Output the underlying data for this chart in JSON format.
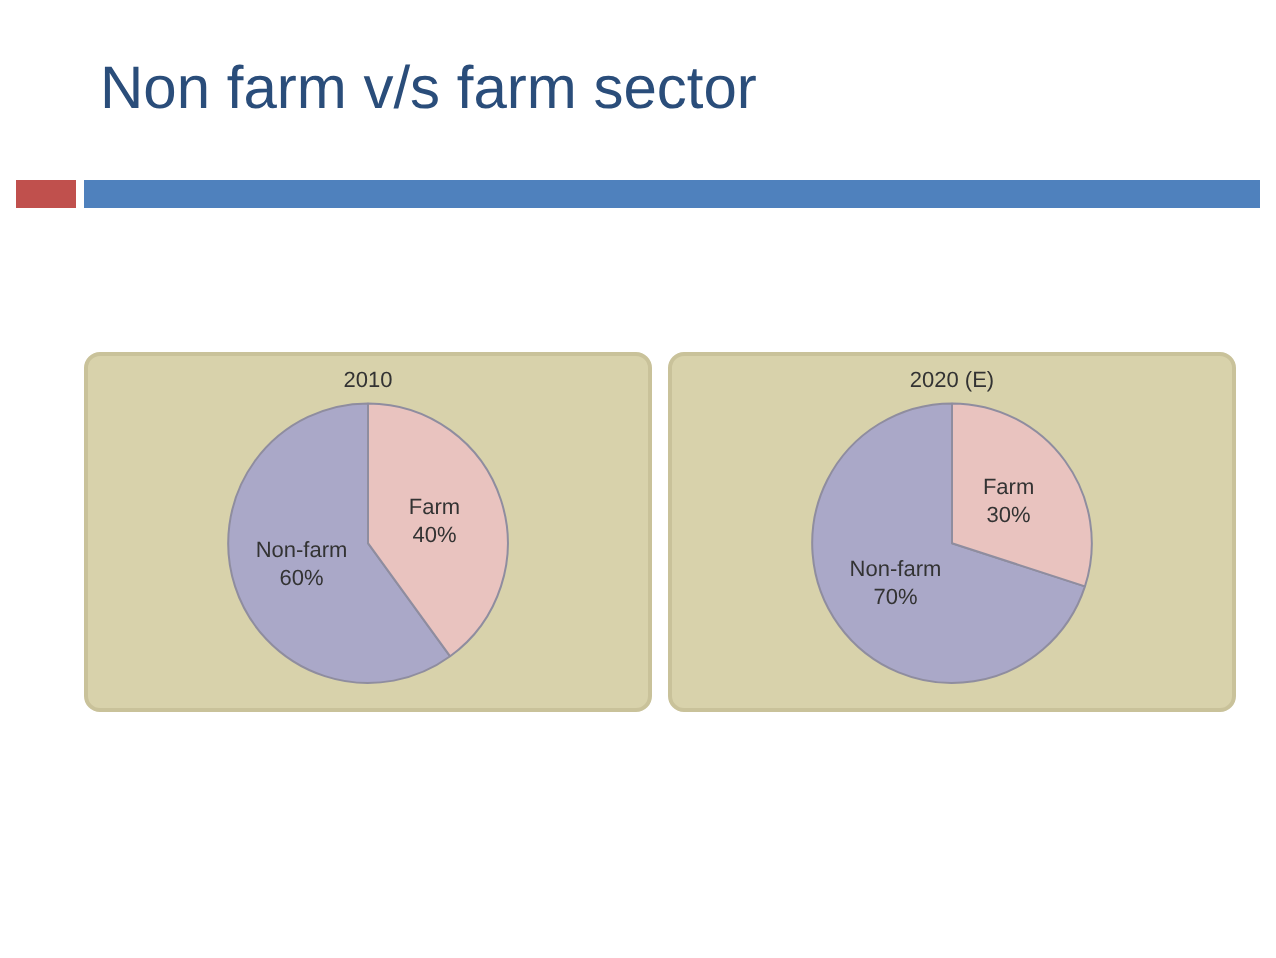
{
  "chart_data": [
    {
      "type": "pie",
      "title": "Non farm v/s farm sector",
      "subtitle": "2010",
      "categories": [
        "Non-farm",
        "Farm"
      ],
      "values": [
        60,
        40
      ],
      "colors": [
        "#aaa8c8",
        "#e9c3bf"
      ],
      "value_labels": [
        "60%",
        "40%"
      ],
      "legend": false
    },
    {
      "type": "pie",
      "subtitle": "2020 (E)",
      "categories": [
        "Non-farm",
        "Farm"
      ],
      "values": [
        70,
        30
      ],
      "colors": [
        "#aaa8c8",
        "#e9c3bf"
      ],
      "value_labels": [
        "70%",
        "30%"
      ],
      "legend": false
    }
  ]
}
